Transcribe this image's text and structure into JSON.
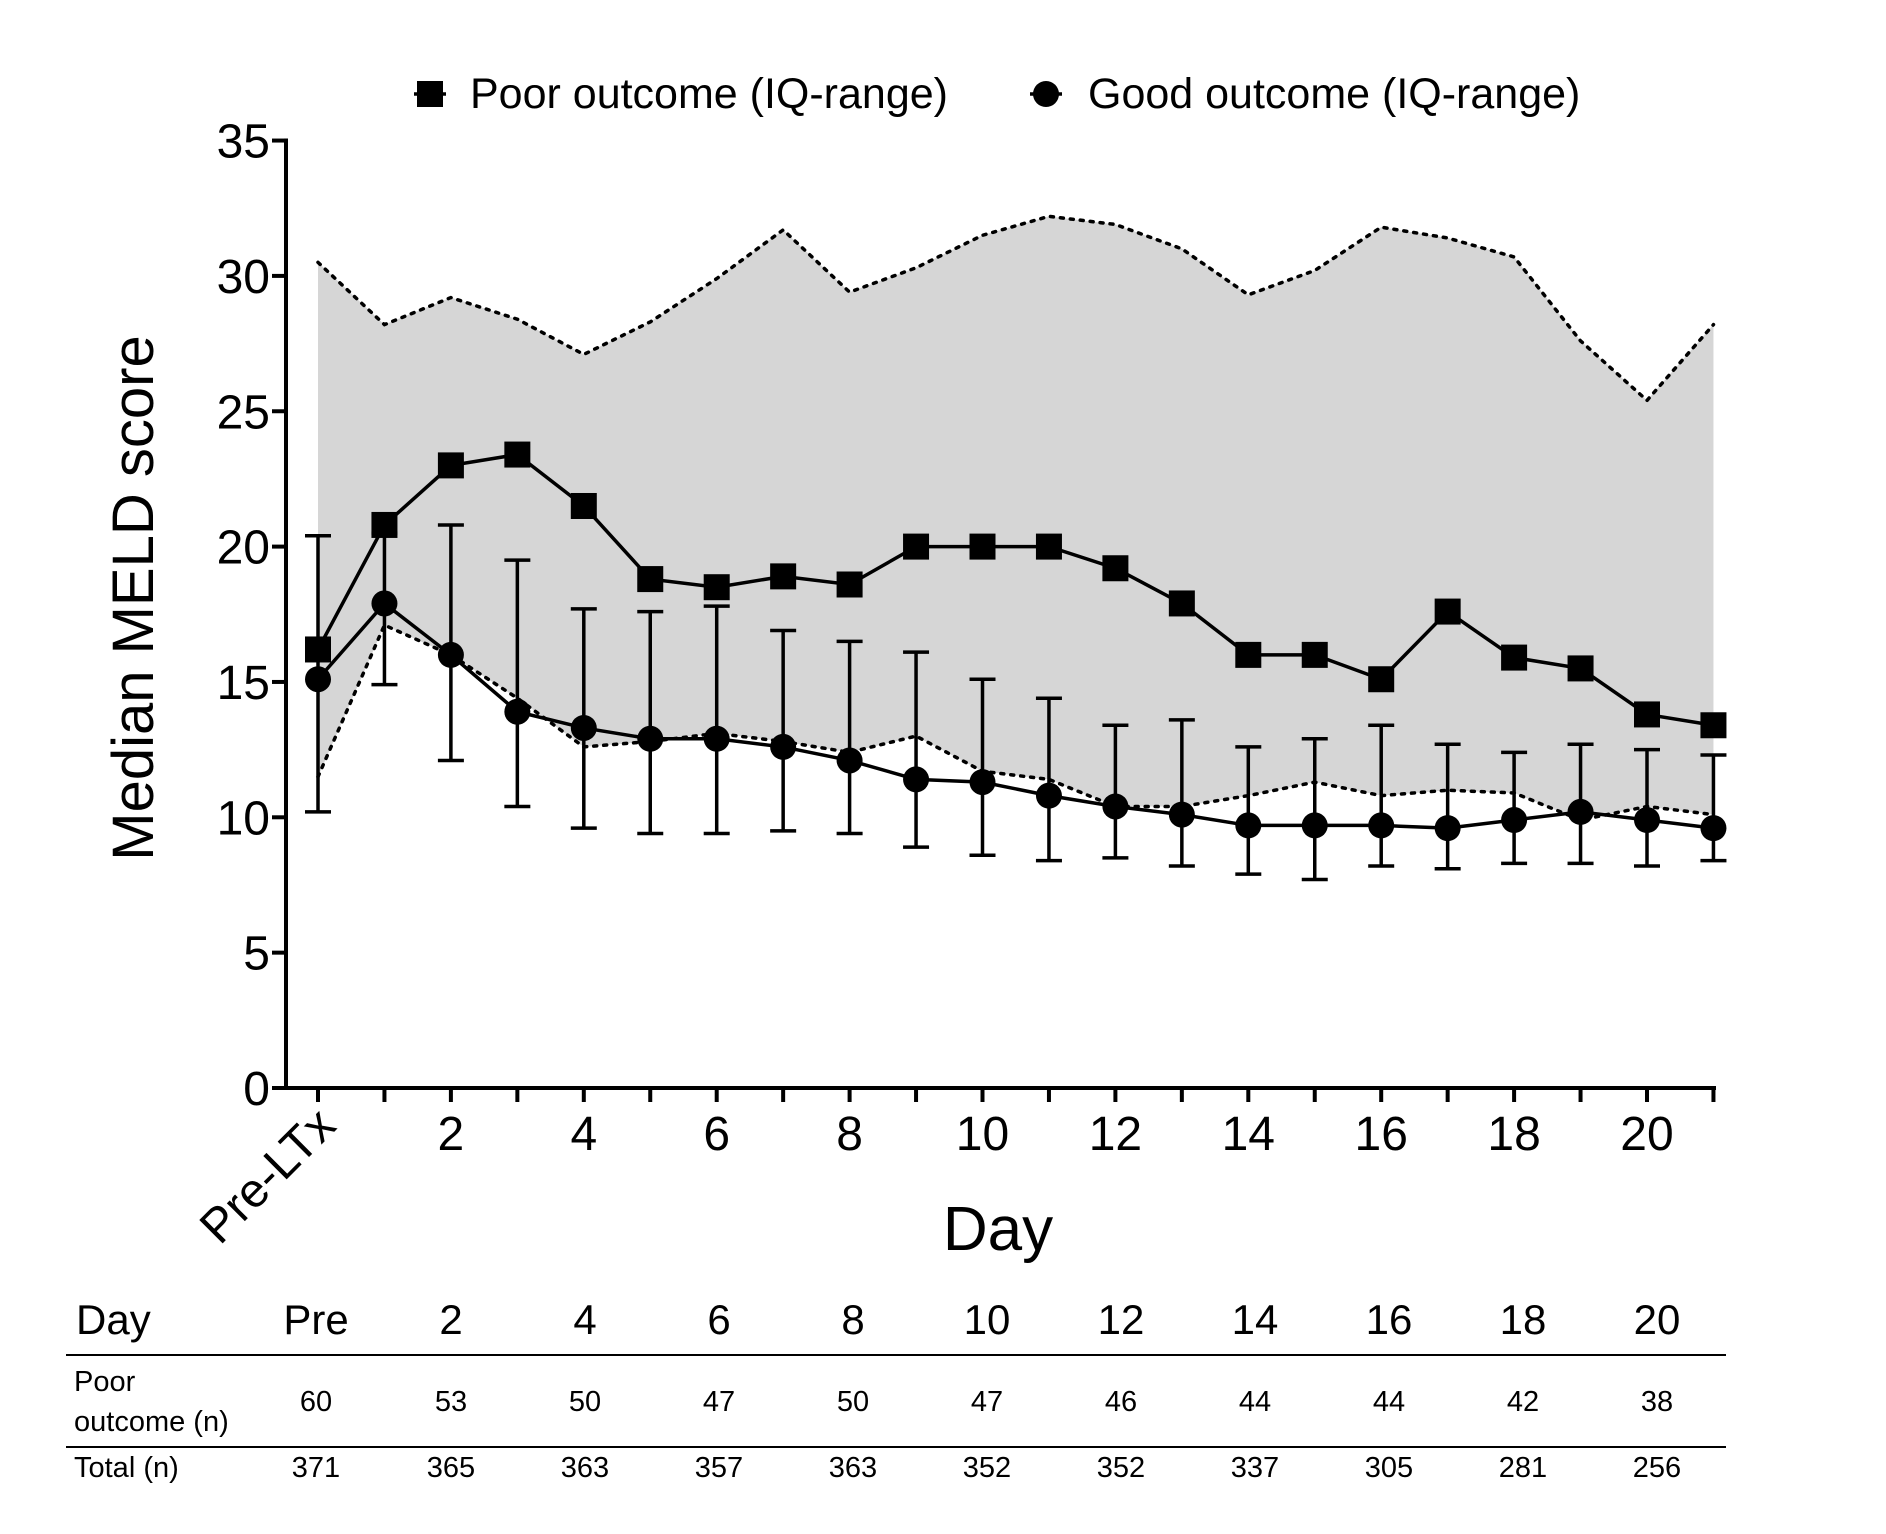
{
  "chart_data": {
    "type": "line",
    "xlabel": "Day",
    "ylabel": "Median MELD score",
    "ylim": [
      0,
      35
    ],
    "yticks": [
      0,
      5,
      10,
      15,
      20,
      25,
      30,
      35
    ],
    "x": [
      0,
      1,
      2,
      3,
      4,
      5,
      6,
      7,
      8,
      9,
      10,
      11,
      12,
      13,
      14,
      15,
      16,
      17,
      18,
      19,
      20,
      21
    ],
    "xticks": [
      {
        "x": 0,
        "label": "Pre-LTx"
      },
      {
        "x": 2,
        "label": "2"
      },
      {
        "x": 4,
        "label": "4"
      },
      {
        "x": 6,
        "label": "6"
      },
      {
        "x": 8,
        "label": "8"
      },
      {
        "x": 10,
        "label": "10"
      },
      {
        "x": 12,
        "label": "12"
      },
      {
        "x": 14,
        "label": "14"
      },
      {
        "x": 16,
        "label": "16"
      },
      {
        "x": 18,
        "label": "18"
      },
      {
        "x": 20,
        "label": "20"
      }
    ],
    "legend_position": "top",
    "grid": false,
    "series": [
      {
        "name": "Poor outcome (IQ-range)",
        "marker": "square",
        "color": "#000000",
        "values": [
          16.2,
          20.8,
          23.0,
          23.4,
          21.5,
          18.8,
          18.5,
          18.9,
          18.6,
          20.0,
          20.0,
          20.0,
          19.2,
          17.9,
          16.0,
          16.0,
          15.1,
          17.6,
          15.9,
          15.5,
          13.8,
          13.4
        ],
        "iq_upper": [
          30.5,
          28.2,
          29.2,
          28.4,
          27.1,
          28.3,
          29.9,
          31.7,
          29.4,
          30.3,
          31.5,
          32.2,
          31.9,
          31.0,
          29.3,
          30.2,
          31.8,
          31.4,
          30.7,
          27.6,
          25.4,
          28.2
        ],
        "iq_lower": [
          11.5,
          17.1,
          16.0,
          14.4,
          12.6,
          12.8,
          13.1,
          12.8,
          12.4,
          13.0,
          11.7,
          11.4,
          10.4,
          10.4,
          10.8,
          11.3,
          10.8,
          11.0,
          10.9,
          9.9,
          10.4,
          10.1
        ],
        "fill_color": "#d6d6d6"
      },
      {
        "name": "Good outcome (IQ-range)",
        "marker": "circle",
        "color": "#000000",
        "values": [
          15.1,
          17.9,
          16.0,
          13.9,
          13.3,
          12.9,
          12.9,
          12.6,
          12.1,
          11.4,
          11.3,
          10.8,
          10.4,
          10.1,
          9.7,
          9.7,
          9.7,
          9.6,
          9.9,
          10.2,
          9.9,
          9.6
        ],
        "err_upper": [
          20.4,
          20.5,
          20.8,
          19.5,
          17.7,
          17.6,
          17.8,
          16.9,
          16.5,
          16.1,
          15.1,
          14.4,
          13.4,
          13.6,
          12.6,
          12.9,
          13.4,
          12.7,
          12.4,
          12.7,
          12.5,
          12.3
        ],
        "err_lower": [
          10.2,
          14.9,
          12.1,
          10.4,
          9.6,
          9.4,
          9.4,
          9.5,
          9.4,
          8.9,
          8.6,
          8.4,
          8.5,
          8.2,
          7.9,
          7.7,
          8.2,
          8.1,
          8.3,
          8.3,
          8.2,
          8.4
        ]
      }
    ]
  },
  "table": {
    "header_label": "Day",
    "days": [
      "Pre",
      "2",
      "4",
      "6",
      "8",
      "10",
      "12",
      "14",
      "16",
      "18",
      "20"
    ],
    "poor_label_line1": "Poor",
    "poor_label_line2": "outcome (n)",
    "poor_values": [
      "60",
      "53",
      "50",
      "47",
      "50",
      "47",
      "46",
      "44",
      "44",
      "42",
      "38"
    ],
    "total_label": "Total (n)",
    "total_values": [
      "371",
      "365",
      "363",
      "357",
      "363",
      "352",
      "352",
      "337",
      "305",
      "281",
      "256"
    ]
  }
}
